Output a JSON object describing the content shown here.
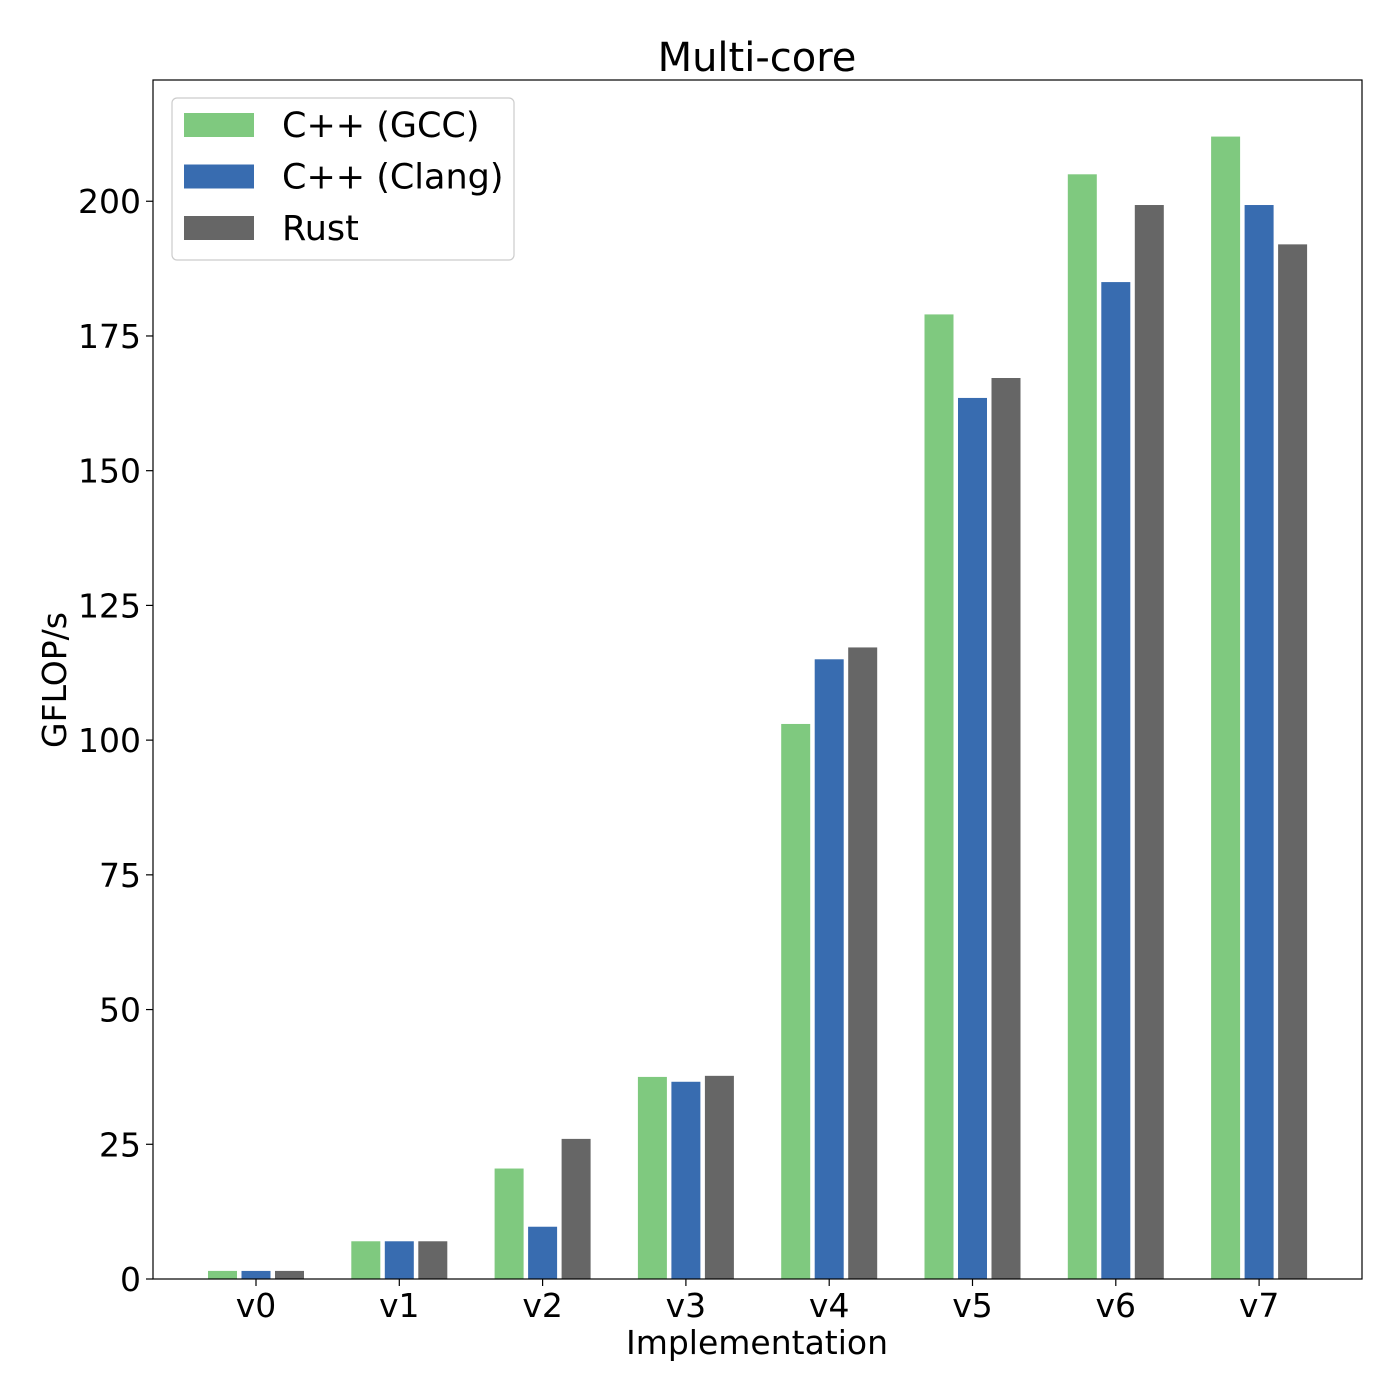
{
  "chart_data": {
    "type": "bar",
    "title": "Multi-core",
    "xlabel": "Implementation",
    "ylabel": "GFLOP/s",
    "categories": [
      "v0",
      "v1",
      "v2",
      "v3",
      "v4",
      "v5",
      "v6",
      "v7"
    ],
    "series": [
      {
        "name": "C++ (GCC)",
        "color": "#7fc97f",
        "values": [
          1.5,
          7.0,
          20.5,
          37.5,
          103.0,
          179.0,
          205.0,
          212.0
        ]
      },
      {
        "name": "C++ (Clang)",
        "color": "#386cb0",
        "values": [
          1.5,
          7.0,
          9.7,
          36.6,
          115.0,
          163.5,
          185.0,
          199.3
        ]
      },
      {
        "name": "Rust",
        "color": "#666666",
        "values": [
          1.5,
          7.0,
          26.0,
          37.7,
          117.2,
          167.2,
          199.3,
          192.0
        ]
      }
    ],
    "ylim": [
      0,
      222.5
    ],
    "yticks": [
      0,
      25,
      50,
      75,
      100,
      125,
      150,
      175,
      200
    ],
    "legend_position": "top-left",
    "grid": false
  }
}
